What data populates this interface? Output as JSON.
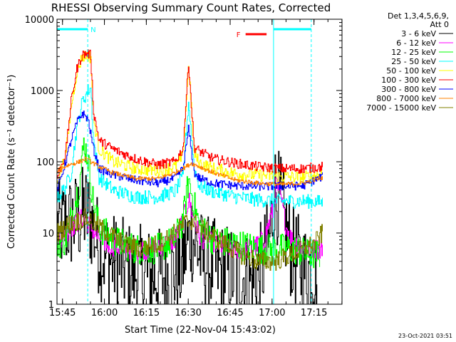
{
  "chart_data": {
    "type": "line",
    "title": "RHESSI Observing Summary Count Rates, Corrected",
    "xlabel": "Start Time (22-Nov-04 15:43:02)",
    "ylabel": "Corrected Count Rate (s⁻¹ detector⁻¹)",
    "ylog": true,
    "ylim": [
      1,
      10000
    ],
    "xlim_minutes": [
      0,
      102
    ],
    "x_ticks": [
      {
        "label": "15:45",
        "m": 1.97
      },
      {
        "label": "16:00",
        "m": 16.97
      },
      {
        "label": "16:15",
        "m": 31.97
      },
      {
        "label": "16:30",
        "m": 46.97
      },
      {
        "label": "16:45",
        "m": 61.97
      },
      {
        "label": "17:00",
        "m": 76.97
      },
      {
        "label": "17:15",
        "m": 91.97
      }
    ],
    "y_ticks": [
      {
        "label": "1",
        "v": 1
      },
      {
        "label": "10",
        "v": 10
      },
      {
        "label": "100",
        "v": 100
      },
      {
        "label": "1000",
        "v": 1000
      },
      {
        "label": "10000",
        "v": 10000
      }
    ],
    "legend_header": [
      "Det 1,3,4,5,6,9,",
      "Att 0"
    ],
    "legend_position": "right",
    "series": [
      {
        "name": "3 - 6 keV",
        "color": "#000000",
        "noise": 0.7,
        "points": [
          [
            0,
            12
          ],
          [
            7,
            15
          ],
          [
            10,
            20
          ],
          [
            12,
            15
          ],
          [
            14,
            8
          ],
          [
            16,
            5
          ],
          [
            20,
            4
          ],
          [
            26,
            3
          ],
          [
            32,
            2.5
          ],
          [
            38,
            2.5
          ],
          [
            44,
            3
          ],
          [
            46,
            6
          ],
          [
            48,
            10
          ],
          [
            50,
            6
          ],
          [
            52,
            4
          ],
          [
            58,
            3
          ],
          [
            66,
            2.5
          ],
          [
            70,
            2
          ],
          [
            73,
            3
          ],
          [
            76,
            8
          ],
          [
            78,
            40
          ],
          [
            80,
            25
          ],
          [
            82,
            10
          ],
          [
            84,
            5
          ],
          [
            86,
            4
          ],
          [
            88,
            3
          ],
          [
            90,
            3
          ],
          [
            92,
            3
          ],
          [
            93,
            2
          ]
        ]
      },
      {
        "name": "6 - 12 keV",
        "color": "#ff00ff",
        "noise": 0.15,
        "points": [
          [
            0,
            8
          ],
          [
            7,
            14
          ],
          [
            9,
            16
          ],
          [
            11,
            14
          ],
          [
            14,
            9
          ],
          [
            18,
            7
          ],
          [
            24,
            6
          ],
          [
            30,
            6
          ],
          [
            36,
            6
          ],
          [
            42,
            8
          ],
          [
            45,
            15
          ],
          [
            47,
            30
          ],
          [
            49,
            15
          ],
          [
            51,
            9
          ],
          [
            56,
            7
          ],
          [
            64,
            6
          ],
          [
            70,
            6
          ],
          [
            74,
            8
          ],
          [
            77,
            20
          ],
          [
            78.5,
            50
          ],
          [
            80,
            30
          ],
          [
            82,
            12
          ],
          [
            84,
            8
          ],
          [
            88,
            6
          ],
          [
            92,
            6
          ],
          [
            95,
            6
          ]
        ]
      },
      {
        "name": "12 - 25 keV",
        "color": "#00ff00",
        "noise": 0.22,
        "points": [
          [
            0,
            7
          ],
          [
            3,
            8
          ],
          [
            8,
            50
          ],
          [
            9.5,
            180
          ],
          [
            11,
            110
          ],
          [
            13,
            25
          ],
          [
            15,
            12
          ],
          [
            20,
            8
          ],
          [
            28,
            6
          ],
          [
            36,
            6
          ],
          [
            42,
            8
          ],
          [
            45,
            15
          ],
          [
            47,
            55
          ],
          [
            49,
            25
          ],
          [
            51,
            12
          ],
          [
            56,
            8
          ],
          [
            64,
            7
          ],
          [
            72,
            6
          ],
          [
            78,
            6
          ],
          [
            84,
            6
          ],
          [
            90,
            5
          ],
          [
            92,
            5
          ],
          [
            94,
            5
          ]
        ]
      },
      {
        "name": "25 - 50 keV",
        "color": "#00ffff",
        "noise": 0.1,
        "points": [
          [
            0,
            30
          ],
          [
            3,
            45
          ],
          [
            5,
            70
          ],
          [
            7,
            300
          ],
          [
            9,
            700
          ],
          [
            11,
            1000
          ],
          [
            12,
            1100
          ],
          [
            13,
            200
          ],
          [
            15,
            60
          ],
          [
            20,
            40
          ],
          [
            28,
            32
          ],
          [
            36,
            32
          ],
          [
            42,
            38
          ],
          [
            45,
            60
          ],
          [
            47,
            700
          ],
          [
            49,
            80
          ],
          [
            51,
            45
          ],
          [
            56,
            38
          ],
          [
            64,
            32
          ],
          [
            72,
            29
          ],
          [
            80,
            28
          ],
          [
            88,
            28
          ],
          [
            95,
            27
          ]
        ]
      },
      {
        "name": "50 - 100 keV",
        "color": "#ffff00",
        "noise": 0.09,
        "points": [
          [
            0,
            55
          ],
          [
            3,
            120
          ],
          [
            5,
            600
          ],
          [
            7,
            1800
          ],
          [
            9,
            3000
          ],
          [
            11,
            3100
          ],
          [
            12,
            2900
          ],
          [
            13,
            400
          ],
          [
            15,
            150
          ],
          [
            20,
            100
          ],
          [
            28,
            80
          ],
          [
            36,
            75
          ],
          [
            42,
            85
          ],
          [
            45,
            120
          ],
          [
            47,
            2400
          ],
          [
            49,
            130
          ],
          [
            51,
            95
          ],
          [
            56,
            80
          ],
          [
            64,
            68
          ],
          [
            72,
            65
          ],
          [
            80,
            62
          ],
          [
            88,
            60
          ],
          [
            95,
            68
          ]
        ]
      },
      {
        "name": "100 - 300 keV",
        "color": "#ff0000",
        "noise": 0.07,
        "points": [
          [
            0,
            60
          ],
          [
            3,
            130
          ],
          [
            5,
            700
          ],
          [
            7,
            2000
          ],
          [
            9,
            3200
          ],
          [
            11,
            3300
          ],
          [
            12,
            3100
          ],
          [
            13,
            500
          ],
          [
            15,
            200
          ],
          [
            20,
            150
          ],
          [
            28,
            110
          ],
          [
            36,
            90
          ],
          [
            42,
            100
          ],
          [
            45,
            150
          ],
          [
            47,
            2500
          ],
          [
            49,
            160
          ],
          [
            51,
            140
          ],
          [
            56,
            110
          ],
          [
            64,
            95
          ],
          [
            72,
            85
          ],
          [
            80,
            80
          ],
          [
            88,
            80
          ],
          [
            95,
            85
          ]
        ]
      },
      {
        "name": "300 - 800 keV",
        "color": "#0000ff",
        "noise": 0.06,
        "points": [
          [
            0,
            40
          ],
          [
            3,
            100
          ],
          [
            5,
            200
          ],
          [
            7,
            350
          ],
          [
            9,
            480
          ],
          [
            11,
            400
          ],
          [
            13,
            150
          ],
          [
            15,
            80
          ],
          [
            20,
            65
          ],
          [
            28,
            55
          ],
          [
            36,
            50
          ],
          [
            42,
            58
          ],
          [
            45,
            80
          ],
          [
            47,
            290
          ],
          [
            49,
            70
          ],
          [
            51,
            58
          ],
          [
            56,
            50
          ],
          [
            64,
            46
          ],
          [
            72,
            45
          ],
          [
            80,
            45
          ],
          [
            88,
            46
          ],
          [
            95,
            62
          ]
        ]
      },
      {
        "name": "800 - 7000 keV",
        "color": "#ff8000",
        "noise": 0.03,
        "points": [
          [
            0,
            75
          ],
          [
            4,
            90
          ],
          [
            8,
            100
          ],
          [
            10,
            110
          ],
          [
            12,
            100
          ],
          [
            15,
            85
          ],
          [
            20,
            70
          ],
          [
            28,
            58
          ],
          [
            36,
            58
          ],
          [
            42,
            70
          ],
          [
            46,
            85
          ],
          [
            48,
            95
          ],
          [
            51,
            85
          ],
          [
            56,
            70
          ],
          [
            64,
            55
          ],
          [
            72,
            50
          ],
          [
            80,
            48
          ],
          [
            88,
            50
          ],
          [
            95,
            60
          ]
        ]
      },
      {
        "name": "7000 - 15000 keV",
        "color": "#808000",
        "noise": 0.14,
        "points": [
          [
            0,
            10
          ],
          [
            4,
            13
          ],
          [
            8,
            15
          ],
          [
            10,
            16
          ],
          [
            12,
            15
          ],
          [
            14,
            13
          ],
          [
            18,
            10
          ],
          [
            24,
            7
          ],
          [
            30,
            6
          ],
          [
            36,
            7
          ],
          [
            42,
            10
          ],
          [
            46,
            14
          ],
          [
            48,
            15
          ],
          [
            50,
            13
          ],
          [
            54,
            10
          ],
          [
            60,
            7
          ],
          [
            66,
            5
          ],
          [
            72,
            4
          ],
          [
            78,
            4
          ],
          [
            84,
            5
          ],
          [
            88,
            6
          ],
          [
            92,
            7
          ],
          [
            95,
            10
          ]
        ]
      }
    ],
    "attenuator_bar": {
      "label": "N",
      "color": "#00ffff",
      "ranges": [
        [
          0,
          11
        ]
      ],
      "vlines": [
        0,
        11
      ]
    },
    "flare_flag": {
      "label": "F",
      "color": "#ff0000",
      "range": [
        67.5,
        75
      ]
    },
    "saa_bar": {
      "color": "#00ffff",
      "range": [
        77.5,
        91
      ],
      "vlines": [
        77.5,
        91
      ]
    }
  },
  "footer": {
    "date": "23-Oct-2021 03:51"
  }
}
